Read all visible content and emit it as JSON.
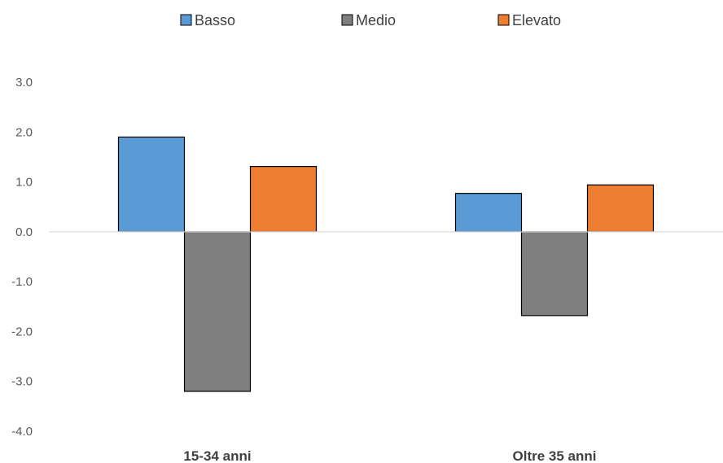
{
  "chart_data": {
    "type": "bar",
    "categories": [
      "15-34 anni",
      "Oltre 35 anni"
    ],
    "series": [
      {
        "name": "Basso",
        "values": [
          1.9,
          0.77
        ],
        "color": "#5B9BD5"
      },
      {
        "name": "Medio",
        "values": [
          -3.2,
          -1.68
        ],
        "color": "#7F7F7F"
      },
      {
        "name": "Elevato",
        "values": [
          1.31,
          0.94
        ],
        "color": "#ED7D31"
      }
    ],
    "ylim": [
      -4.0,
      3.0
    ],
    "yticks": [
      "3.0",
      "2.0",
      "1.0",
      "0.0",
      "-1.0",
      "-2.0",
      "-3.0",
      "-4.0"
    ],
    "ytick_values": [
      3,
      2,
      1,
      0,
      -1,
      -2,
      -3,
      -4
    ],
    "legend_position": "top-center",
    "grid": false,
    "title": "",
    "xlabel": "",
    "ylabel": ""
  }
}
